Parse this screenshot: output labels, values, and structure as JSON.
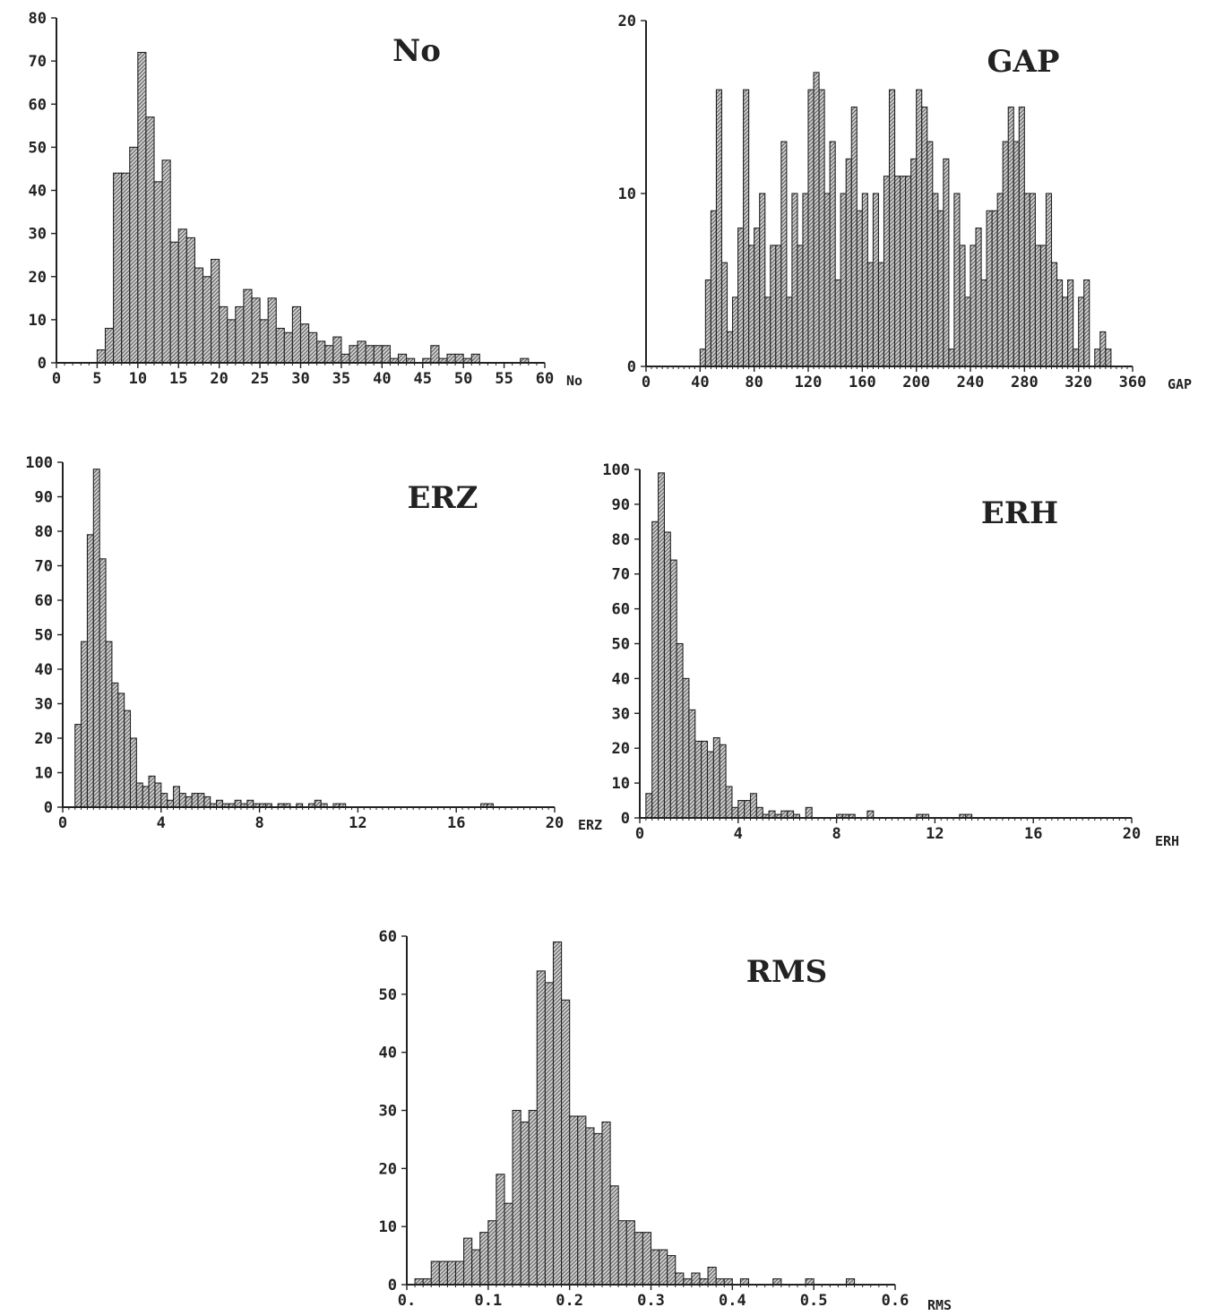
{
  "chart_data": [
    {
      "type": "bar",
      "title": "No",
      "xlabel": "No",
      "xlim": [
        0,
        60
      ],
      "ylim": [
        0,
        80
      ],
      "xticks": [
        0,
        5,
        10,
        15,
        20,
        25,
        30,
        35,
        40,
        45,
        50,
        55,
        60
      ],
      "yticks": [
        0,
        10,
        20,
        30,
        40,
        50,
        60,
        70,
        80
      ],
      "bin_width": 1,
      "bin_starts": [
        5,
        6,
        7,
        8,
        9,
        10,
        11,
        12,
        13,
        14,
        15,
        16,
        17,
        18,
        19,
        20,
        21,
        22,
        23,
        24,
        25,
        26,
        27,
        28,
        29,
        30,
        31,
        32,
        33,
        34,
        35,
        36,
        37,
        38,
        39,
        40,
        41,
        42,
        43,
        44,
        45,
        46,
        47,
        48,
        49,
        50,
        51,
        52,
        53,
        54,
        55,
        56,
        57,
        58,
        59
      ],
      "values": [
        3,
        8,
        44,
        44,
        50,
        72,
        57,
        42,
        47,
        28,
        31,
        29,
        22,
        20,
        24,
        13,
        10,
        13,
        17,
        15,
        10,
        15,
        8,
        7,
        13,
        9,
        7,
        5,
        4,
        6,
        2,
        4,
        5,
        4,
        4,
        4,
        1,
        2,
        1,
        0,
        1,
        4,
        1,
        2,
        2,
        1,
        2,
        0,
        0,
        0,
        0,
        0,
        1,
        0,
        0
      ]
    },
    {
      "type": "bar",
      "title": "GAP",
      "xlabel": "GAP",
      "xlim": [
        0,
        360
      ],
      "ylim": [
        0,
        20
      ],
      "xticks": [
        0,
        40,
        80,
        120,
        160,
        200,
        240,
        280,
        320,
        360
      ],
      "yticks": [
        0,
        10,
        20
      ],
      "bin_width": 4,
      "bin_starts": [
        40,
        44,
        48,
        52,
        56,
        60,
        64,
        68,
        72,
        76,
        80,
        84,
        88,
        92,
        96,
        100,
        104,
        108,
        112,
        116,
        120,
        124,
        128,
        132,
        136,
        140,
        144,
        148,
        152,
        156,
        160,
        164,
        168,
        172,
        176,
        180,
        184,
        188,
        192,
        196,
        200,
        204,
        208,
        212,
        216,
        220,
        224,
        228,
        232,
        236,
        240,
        244,
        248,
        252,
        256,
        260,
        264,
        268,
        272,
        276,
        280,
        284,
        288,
        292,
        296,
        300,
        304,
        308,
        312,
        316,
        320,
        324,
        328,
        332,
        336,
        340
      ],
      "values": [
        1,
        5,
        9,
        16,
        6,
        2,
        4,
        8,
        16,
        7,
        8,
        10,
        4,
        7,
        7,
        13,
        4,
        10,
        7,
        10,
        16,
        17,
        16,
        10,
        13,
        5,
        10,
        12,
        15,
        9,
        10,
        6,
        10,
        6,
        11,
        16,
        11,
        11,
        11,
        12,
        16,
        15,
        13,
        10,
        9,
        12,
        1,
        10,
        7,
        4,
        7,
        8,
        5,
        9,
        9,
        10,
        13,
        15,
        13,
        15,
        10,
        10,
        7,
        7,
        10,
        6,
        5,
        4,
        5,
        1,
        4,
        5,
        0,
        1,
        2,
        1
      ]
    },
    {
      "type": "bar",
      "title": "ERZ",
      "xlabel": "ERZ",
      "xlim": [
        0,
        20
      ],
      "ylim": [
        0,
        100
      ],
      "xticks": [
        0,
        4,
        8,
        12,
        16,
        20
      ],
      "yticks": [
        0,
        10,
        20,
        30,
        40,
        50,
        60,
        70,
        80,
        90,
        100
      ],
      "bin_width": 0.25,
      "bin_starts": [
        0.5,
        0.75,
        1.0,
        1.25,
        1.5,
        1.75,
        2.0,
        2.25,
        2.5,
        2.75,
        3.0,
        3.25,
        3.5,
        3.75,
        4.0,
        4.25,
        4.5,
        4.75,
        5.0,
        5.25,
        5.5,
        5.75,
        6.0,
        6.25,
        6.5,
        6.75,
        7.0,
        7.25,
        7.5,
        7.75,
        8.0,
        8.25,
        8.5,
        8.75,
        9.0,
        9.25,
        9.5,
        9.75,
        10.0,
        10.25,
        10.5,
        10.75,
        11.0,
        11.25,
        11.5,
        11.75,
        12.0,
        12.25,
        12.5,
        12.75,
        13.0,
        13.25,
        13.5,
        13.75,
        14.0,
        14.25,
        14.5,
        14.75,
        15.0,
        15.25,
        15.5,
        15.75,
        16.0,
        16.25,
        16.5,
        16.75,
        17.0,
        17.25
      ],
      "values": [
        24,
        48,
        79,
        98,
        72,
        48,
        36,
        33,
        28,
        20,
        7,
        6,
        9,
        7,
        4,
        2,
        6,
        4,
        3,
        4,
        4,
        3,
        1,
        2,
        1,
        1,
        2,
        1,
        2,
        1,
        1,
        1,
        0,
        1,
        1,
        0,
        1,
        0,
        1,
        2,
        1,
        0,
        1,
        1,
        0,
        0,
        0,
        0,
        0,
        0,
        0,
        0,
        0,
        0,
        0,
        0,
        0,
        0,
        0,
        0,
        0,
        0,
        0,
        0,
        0,
        0,
        1,
        1
      ]
    },
    {
      "type": "bar",
      "title": "ERH",
      "xlabel": "ERH",
      "xlim": [
        0,
        20
      ],
      "ylim": [
        0,
        100
      ],
      "xticks": [
        0,
        4,
        8,
        12,
        16,
        20
      ],
      "yticks": [
        0,
        10,
        20,
        30,
        40,
        50,
        60,
        70,
        80,
        90,
        100
      ],
      "bin_width": 0.25,
      "bin_starts": [
        0.25,
        0.5,
        0.75,
        1.0,
        1.25,
        1.5,
        1.75,
        2.0,
        2.25,
        2.5,
        2.75,
        3.0,
        3.25,
        3.5,
        3.75,
        4.0,
        4.25,
        4.5,
        4.75,
        5.0,
        5.25,
        5.5,
        5.75,
        6.0,
        6.25,
        6.5,
        6.75,
        7.0,
        7.25,
        7.5,
        7.75,
        8.0,
        8.25,
        8.5,
        8.75,
        9.0,
        9.25,
        9.5,
        9.75,
        10.0,
        10.25,
        10.5,
        10.75,
        11.0,
        11.25,
        11.5,
        11.75,
        12.0,
        12.25,
        12.5,
        12.75,
        13.0,
        13.25
      ],
      "values": [
        7,
        85,
        99,
        82,
        74,
        50,
        40,
        31,
        22,
        22,
        19,
        23,
        21,
        9,
        3,
        5,
        5,
        7,
        3,
        1,
        2,
        1,
        2,
        2,
        1,
        0,
        3,
        0,
        0,
        0,
        0,
        1,
        1,
        1,
        0,
        0,
        2,
        0,
        0,
        0,
        0,
        0,
        0,
        0,
        1,
        1,
        0,
        0,
        0,
        0,
        0,
        1,
        1
      ]
    },
    {
      "type": "bar",
      "title": "RMS",
      "xlabel": "RMS",
      "xlim": [
        0,
        0.6
      ],
      "ylim": [
        0,
        60
      ],
      "xticks": [
        "0.",
        "0.1",
        "0.2",
        "0.3",
        "0.4",
        "0.5",
        "0.6"
      ],
      "yticks": [
        0,
        10,
        20,
        30,
        40,
        50,
        60
      ],
      "bin_width": 0.01,
      "bin_starts": [
        0.01,
        0.02,
        0.03,
        0.04,
        0.05,
        0.06,
        0.07,
        0.08,
        0.09,
        0.1,
        0.11,
        0.12,
        0.13,
        0.14,
        0.15,
        0.16,
        0.17,
        0.18,
        0.19,
        0.2,
        0.21,
        0.22,
        0.23,
        0.24,
        0.25,
        0.26,
        0.27,
        0.28,
        0.29,
        0.3,
        0.31,
        0.32,
        0.33,
        0.34,
        0.35,
        0.36,
        0.37,
        0.38,
        0.39,
        0.4,
        0.41,
        0.42,
        0.43,
        0.44,
        0.45,
        0.46,
        0.47,
        0.48,
        0.49,
        0.5,
        0.51,
        0.52,
        0.53,
        0.54
      ],
      "values": [
        1,
        1,
        4,
        4,
        4,
        4,
        8,
        6,
        9,
        11,
        19,
        14,
        30,
        28,
        30,
        54,
        52,
        59,
        49,
        29,
        29,
        27,
        26,
        28,
        17,
        11,
        11,
        9,
        9,
        6,
        6,
        5,
        2,
        1,
        2,
        1,
        3,
        1,
        1,
        0,
        1,
        0,
        0,
        0,
        1,
        0,
        0,
        0,
        1,
        0,
        0,
        0,
        0,
        1
      ]
    }
  ]
}
